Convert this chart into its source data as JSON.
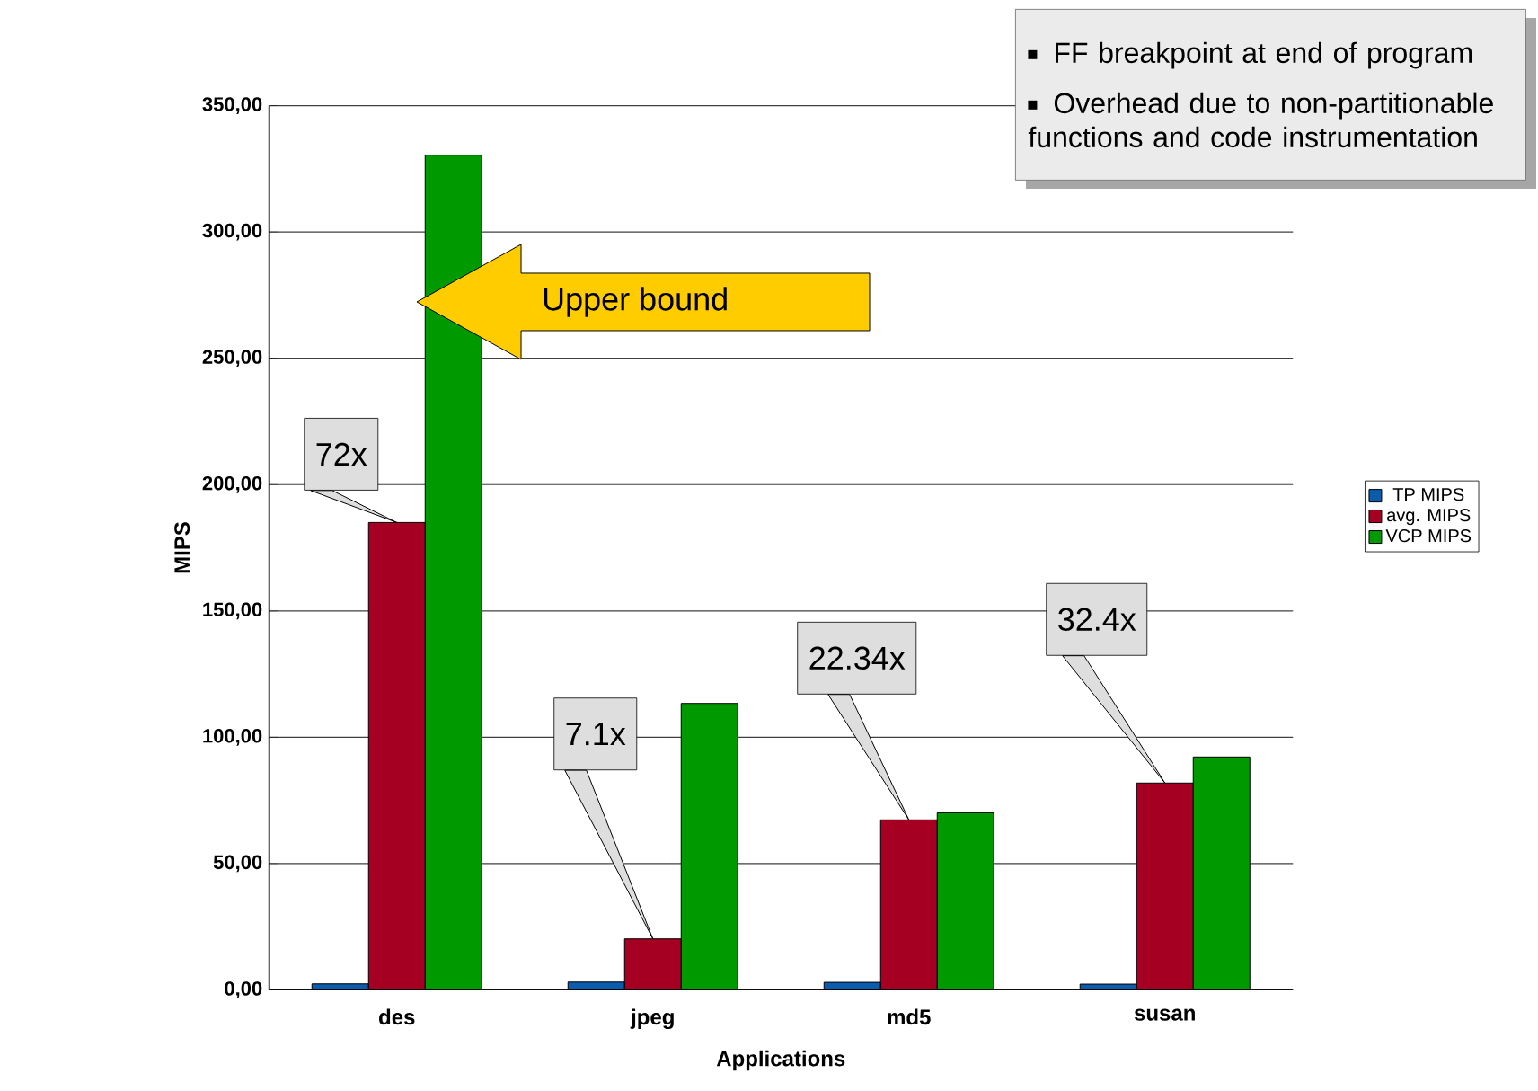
{
  "chart_data": {
    "type": "bar",
    "xlabel": "Applications",
    "ylabel": "MIPS",
    "categories": [
      "des",
      "jpeg",
      "md5",
      "susan"
    ],
    "series": [
      {
        "name": "TP MIPS",
        "color": "#0b5cad",
        "values": [
          2.4,
          3.1,
          3.0,
          2.3
        ]
      },
      {
        "name": "avg. MIPS",
        "color": "#a50021",
        "values": [
          185,
          20.2,
          67.3,
          81.9
        ]
      },
      {
        "name": "VCP MIPS",
        "color": "#009900",
        "values": [
          330.4,
          113.4,
          70.1,
          92.2
        ]
      }
    ],
    "ylim": [
      0,
      350
    ],
    "yticks": [
      {
        "value": 0,
        "label": "0,00"
      },
      {
        "value": 50,
        "label": "50,00"
      },
      {
        "value": 100,
        "label": "100,00"
      },
      {
        "value": 150,
        "label": "150,00"
      },
      {
        "value": 200,
        "label": "200,00"
      },
      {
        "value": 250,
        "label": "250,00"
      },
      {
        "value": 300,
        "label": "300,00"
      },
      {
        "value": 350,
        "label": "350,00"
      }
    ],
    "grid": "y",
    "legend": "right",
    "annotations": [
      "FF breakpoint at end of program",
      "Overhead due to non-partitionable functions and code instrumentation",
      "Upper bound",
      "72x",
      "7.1x",
      "22.34x",
      "32.4x"
    ]
  }
}
